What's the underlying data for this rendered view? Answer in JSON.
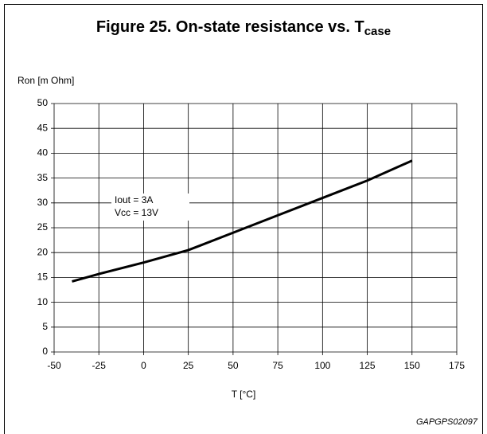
{
  "chart_data": {
    "type": "line",
    "title": "Figure 25. On-state resistance vs. T",
    "title_subscript": "case",
    "y_label": "Ron [m Ohm]",
    "x_label": "T [°C]",
    "annotations": [
      "Iout = 3A",
      "Vcc = 13V"
    ],
    "footnote": "GAPGPS02097",
    "x": [
      -40,
      -25,
      0,
      25,
      50,
      75,
      100,
      125,
      150
    ],
    "series": [
      {
        "name": "Ron",
        "color": "#000000",
        "values": [
          14.2,
          15.7,
          18,
          20.5,
          24,
          27.5,
          31,
          34.5,
          38.5
        ]
      }
    ],
    "xlim": [
      -50,
      175
    ],
    "xticks": [
      -50,
      -25,
      0,
      25,
      50,
      75,
      100,
      125,
      150,
      175
    ],
    "ylim": [
      0,
      50
    ],
    "yticks": [
      0,
      5,
      10,
      15,
      20,
      25,
      30,
      35,
      40,
      45,
      50
    ],
    "grid": true
  }
}
